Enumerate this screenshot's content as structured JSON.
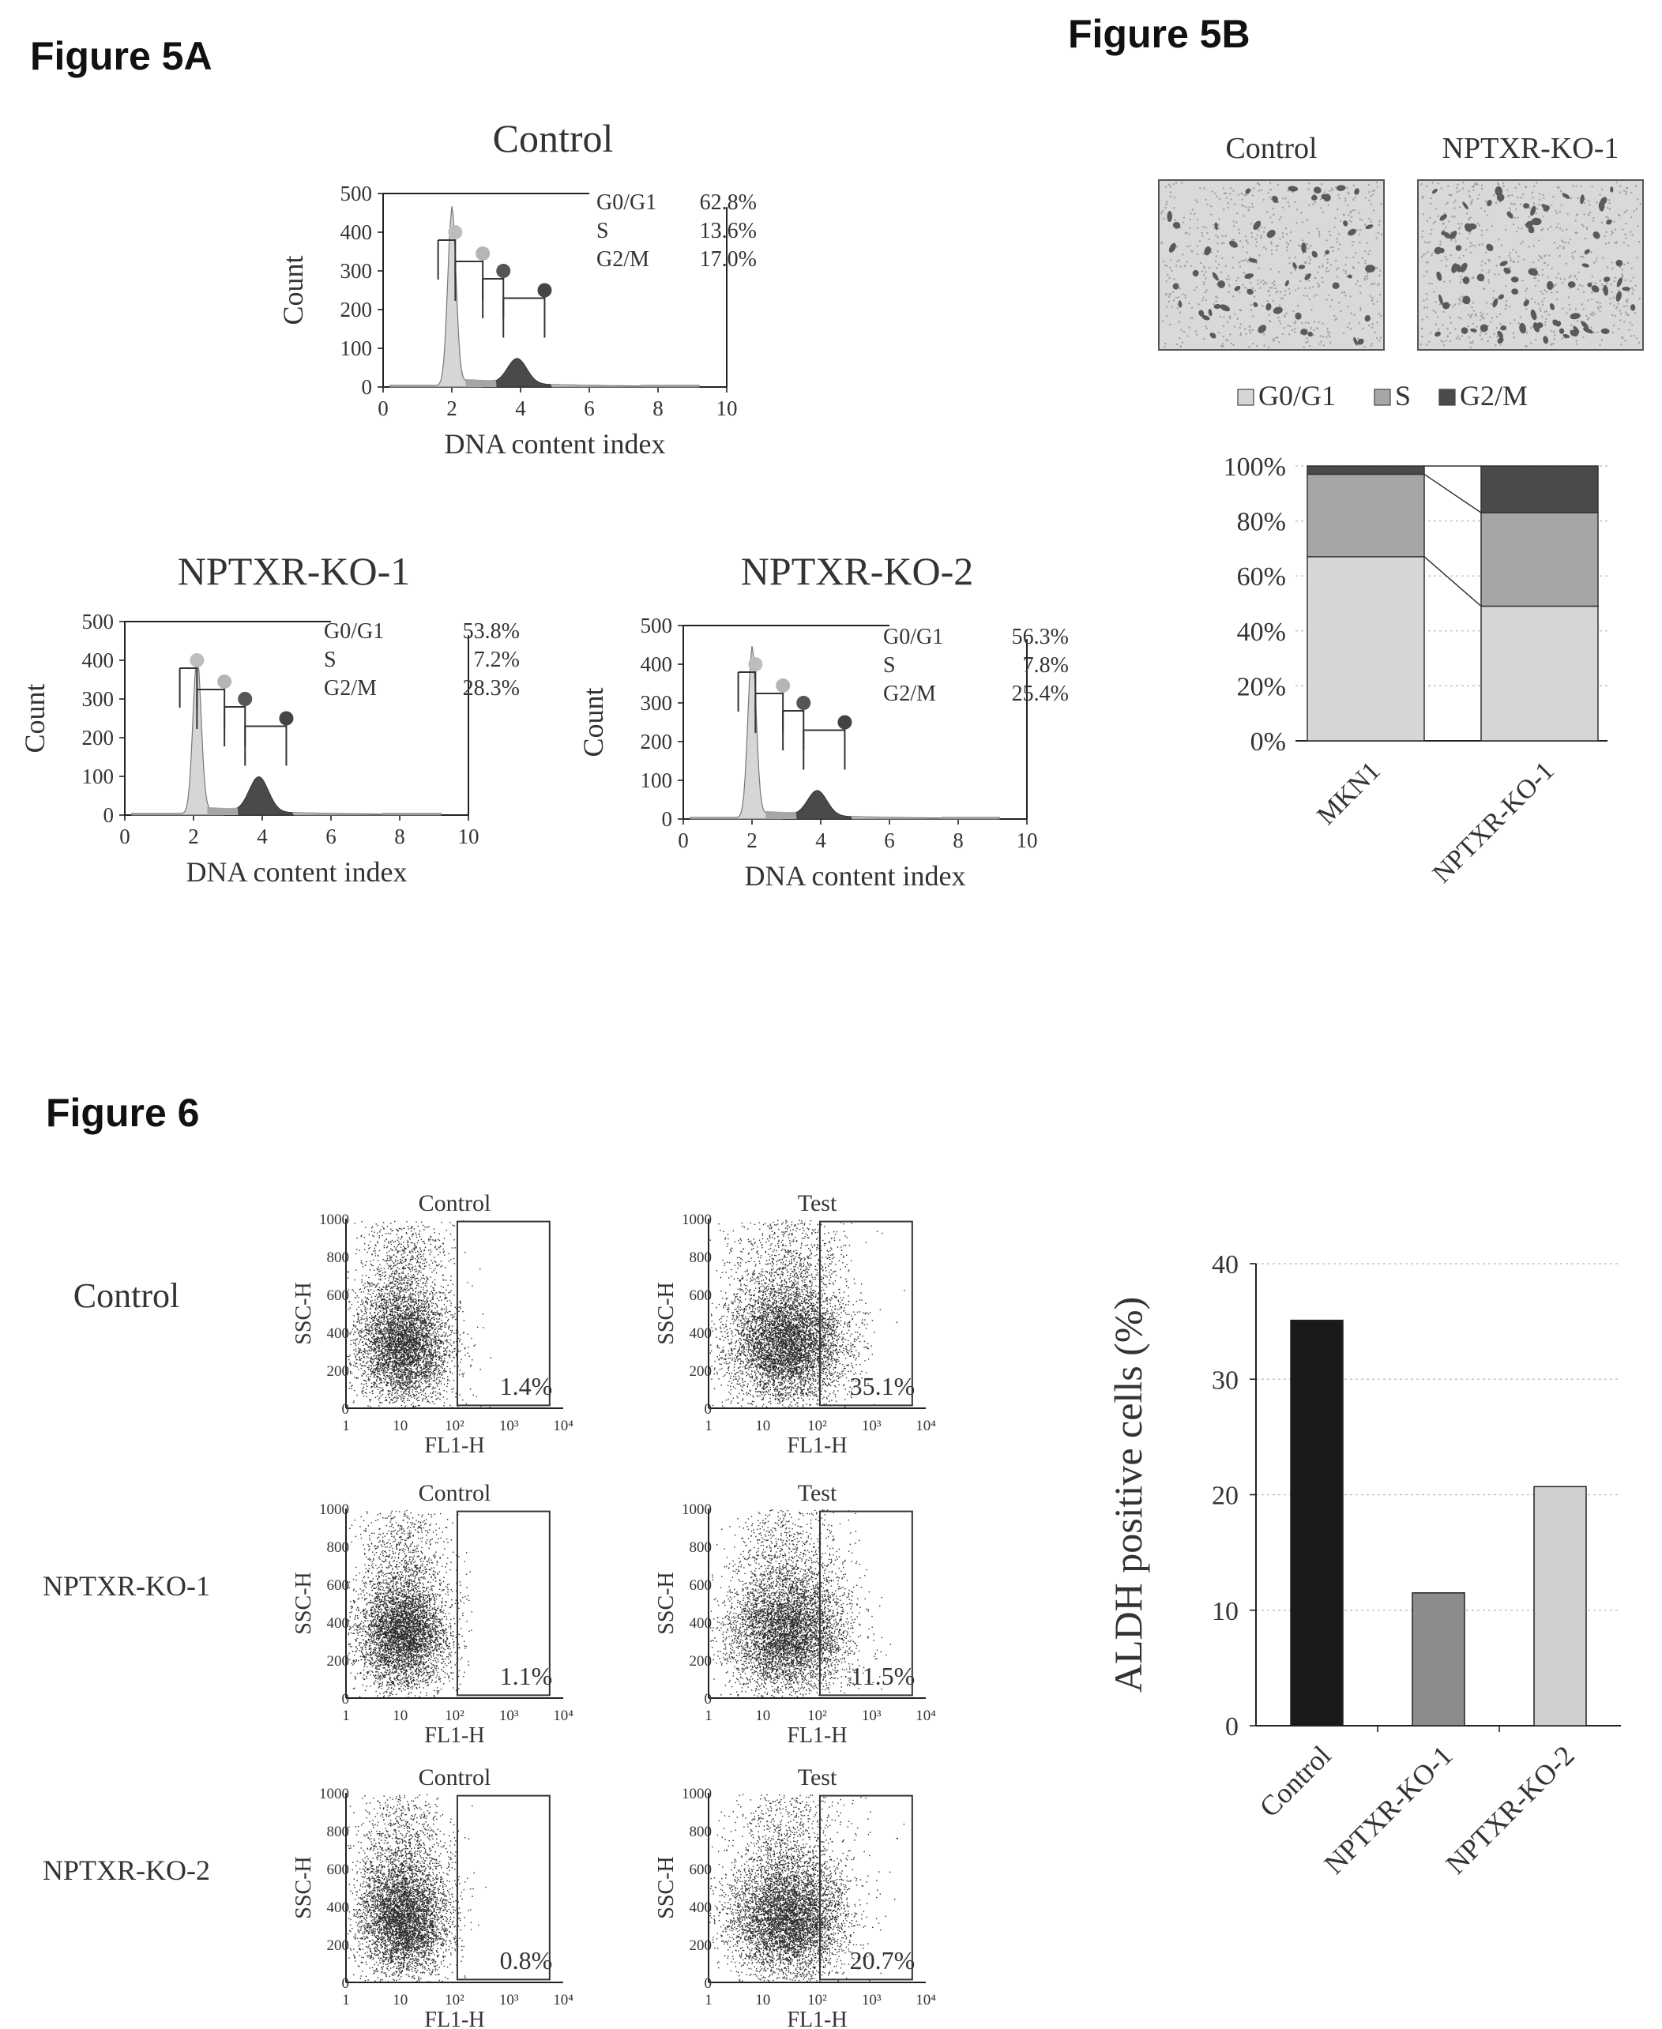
{
  "figure_labels": {
    "fig5a": "Figure 5A",
    "fig5b": "Figure 5B",
    "fig6": "Figure 6"
  },
  "colors": {
    "g0g1": "#d6d6d6",
    "s": "#a6a6a6",
    "g2m": "#4a4a4a",
    "bar_control": "#1a1a1a",
    "bar_ko1": "#8c8c8c",
    "bar_ko2": "#cfcfcf",
    "dots": "#2a2a2a"
  },
  "chart_data": [
    {
      "id": "hist_control",
      "type": "area",
      "title": "Control",
      "xlabel": "DNA content index",
      "ylabel": "Count",
      "xlim": [
        0,
        10
      ],
      "ylim": [
        0,
        500
      ],
      "xticks": [
        "0",
        "2",
        "4",
        "6",
        "8",
        "10"
      ],
      "yticks": [
        "0",
        "100",
        "200",
        "300",
        "400",
        "500"
      ],
      "phases": [
        {
          "name": "G0/G1",
          "value": "62.8%"
        },
        {
          "name": "S",
          "value": "13.6%"
        },
        {
          "name": "G2/M",
          "value": "17.0%"
        }
      ],
      "peaks": {
        "g1_center": 2.0,
        "g1_height": 450,
        "g2_center": 3.9,
        "g2_height": 65
      }
    },
    {
      "id": "hist_ko1",
      "type": "area",
      "title": "NPTXR-KO-1",
      "xlabel": "DNA content index",
      "ylabel": "Count",
      "xlim": [
        0,
        10
      ],
      "ylim": [
        0,
        500
      ],
      "xticks": [
        "0",
        "2",
        "4",
        "6",
        "8",
        "10"
      ],
      "yticks": [
        "0",
        "100",
        "200",
        "300",
        "400",
        "500"
      ],
      "phases": [
        {
          "name": "G0/G1",
          "value": "53.8%"
        },
        {
          "name": "S",
          "value": "7.2%"
        },
        {
          "name": "G2/M",
          "value": "28.3%"
        }
      ],
      "peaks": {
        "g1_center": 2.1,
        "g1_height": 400,
        "g2_center": 3.9,
        "g2_height": 90
      }
    },
    {
      "id": "hist_ko2",
      "type": "area",
      "title": "NPTXR-KO-2",
      "xlabel": "DNA content index",
      "ylabel": "Count",
      "xlim": [
        0,
        10
      ],
      "ylim": [
        0,
        500
      ],
      "xticks": [
        "0",
        "2",
        "4",
        "6",
        "8",
        "10"
      ],
      "yticks": [
        "0",
        "100",
        "200",
        "300",
        "400",
        "500"
      ],
      "phases": [
        {
          "name": "G0/G1",
          "value": "56.3%"
        },
        {
          "name": "S",
          "value": "7.8%"
        },
        {
          "name": "G2/M",
          "value": "25.4%"
        }
      ],
      "peaks": {
        "g1_center": 2.0,
        "g1_height": 430,
        "g2_center": 3.9,
        "g2_height": 65
      }
    },
    {
      "id": "stacked_bar",
      "type": "bar",
      "stacked": true,
      "categories": [
        "MKN1",
        "NPTXR-KO-1"
      ],
      "series": [
        {
          "name": "G0/G1",
          "values": [
            67,
            49
          ]
        },
        {
          "name": "S",
          "values": [
            30,
            34
          ]
        },
        {
          "name": "G2/M",
          "values": [
            3,
            17
          ]
        }
      ],
      "ylim": [
        0,
        100
      ],
      "yticks": [
        "0%",
        "20%",
        "40%",
        "60%",
        "80%",
        "100%"
      ],
      "legend": "top",
      "grid": true
    },
    {
      "id": "aldh_bar",
      "type": "bar",
      "categories": [
        "Control",
        "NPTXR-KO-1",
        "NPTXR-KO-2"
      ],
      "values": [
        35.1,
        11.5,
        20.7
      ],
      "ylabel": "ALDH positive cells (%)",
      "ylim": [
        0,
        40
      ],
      "yticks": [
        "0",
        "10",
        "20",
        "30",
        "40"
      ],
      "grid": true
    },
    {
      "id": "scatter_plots",
      "type": "scatter",
      "xlabel": "FL1-H",
      "ylabel": "SSC-H",
      "xticks": [
        "1",
        "10",
        "10²",
        "10³",
        "10⁴"
      ],
      "yticks": [
        "0",
        "200",
        "400",
        "600",
        "800",
        "1000"
      ],
      "rows": [
        {
          "label": "Control",
          "panels": [
            {
              "title": "Control",
              "value": "1.4%"
            },
            {
              "title": "Test",
              "value": "35.1%"
            }
          ]
        },
        {
          "label": "NPTXR-KO-1",
          "panels": [
            {
              "title": "Control",
              "value": "1.1%"
            },
            {
              "title": "Test",
              "value": "11.5%"
            }
          ]
        },
        {
          "label": "NPTXR-KO-2",
          "panels": [
            {
              "title": "Control",
              "value": "0.8%"
            },
            {
              "title": "Test",
              "value": "20.7%"
            }
          ]
        }
      ]
    }
  ],
  "micrographs": [
    {
      "label": "Control"
    },
    {
      "label": "NPTXR-KO-1"
    }
  ]
}
